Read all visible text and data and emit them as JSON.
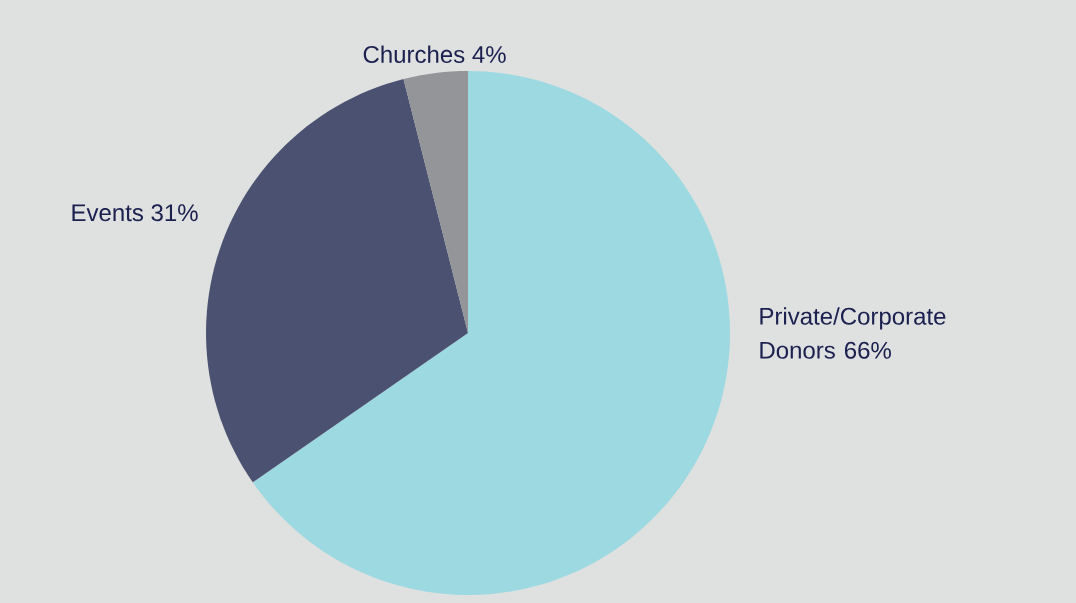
{
  "chart_data": {
    "type": "pie",
    "categories": [
      "Private/Corporate Donors",
      "Events",
      "Churches"
    ],
    "values": [
      66,
      31,
      4
    ],
    "value_labels": [
      "66%",
      "31%",
      "4%"
    ],
    "colors": [
      "#9dd9e1",
      "#4b5170",
      "#939598"
    ]
  }
}
